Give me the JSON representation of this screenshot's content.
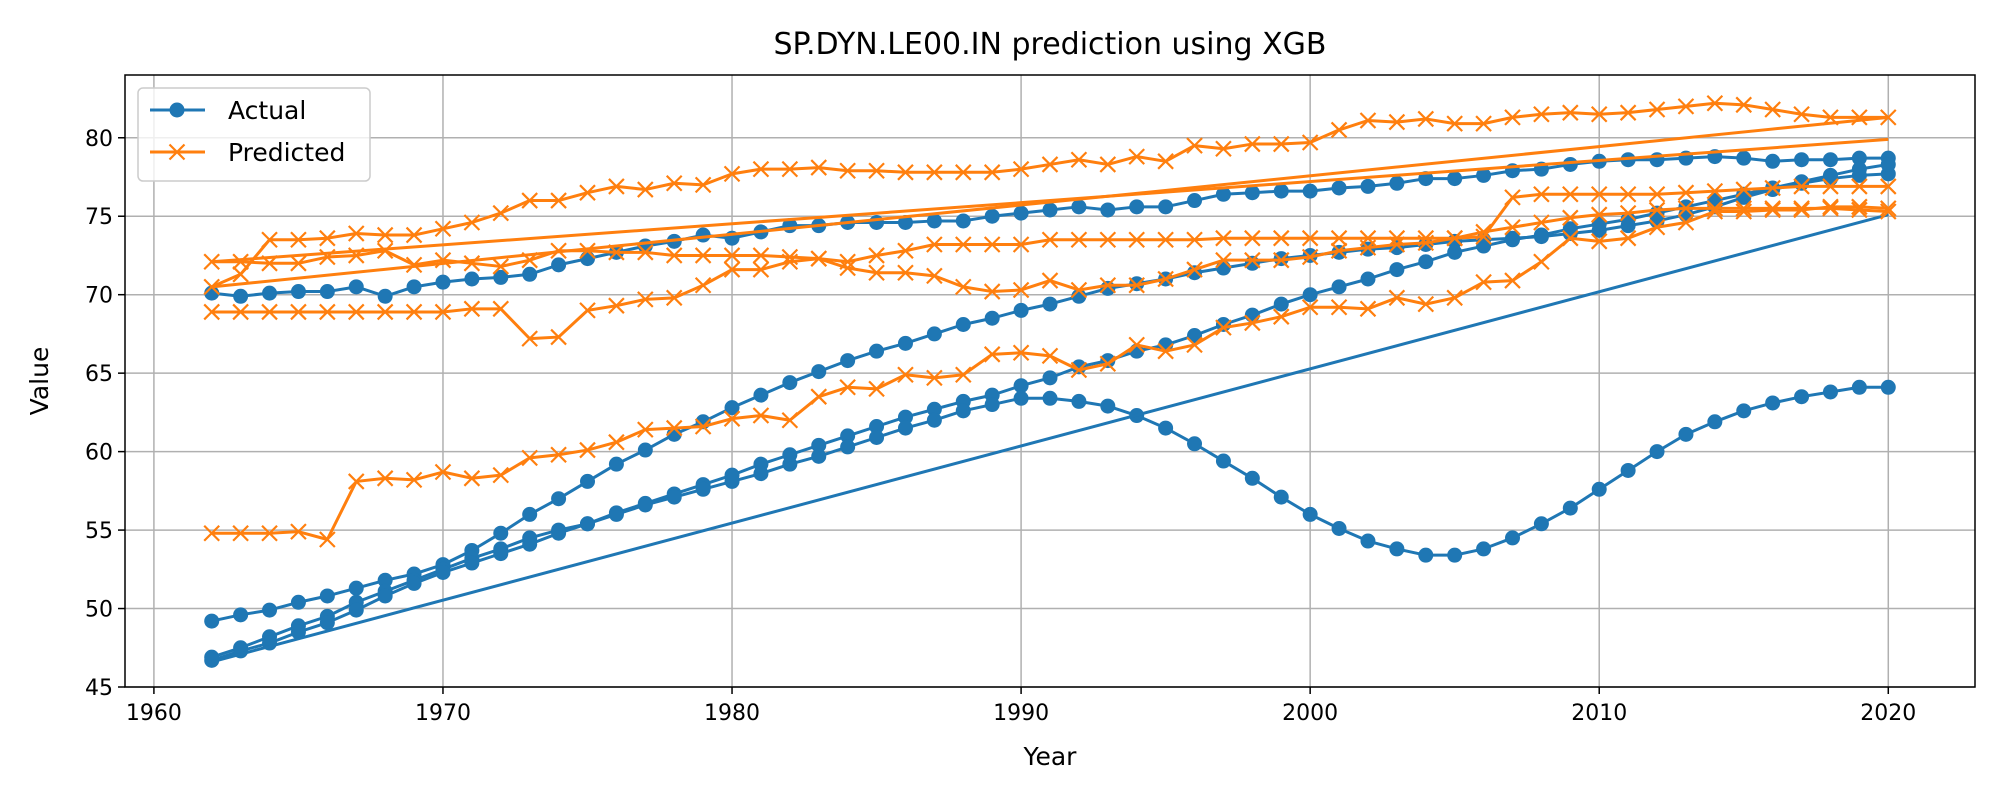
{
  "chart_data": {
    "type": "line",
    "title": "SP.DYN.LE00.IN prediction using XGB",
    "xlabel": "Year",
    "ylabel": "Value",
    "xlim": [
      1959,
      2023
    ],
    "ylim": [
      45,
      84
    ],
    "xticks": [
      1960,
      1970,
      1980,
      1990,
      2000,
      2010,
      2020
    ],
    "yticks": [
      45,
      50,
      55,
      60,
      65,
      70,
      75,
      80
    ],
    "grid": true,
    "legend_position": "top-left",
    "legend": [
      {
        "label": "Actual",
        "marker": "circle",
        "color": "#1f77b4"
      },
      {
        "label": "Predicted",
        "marker": "x",
        "color": "#ff7f0e"
      }
    ],
    "series": [
      {
        "legend": "Actual",
        "marker": "circle",
        "color": "#1f77b4",
        "x": [
          1962,
          1963,
          1964,
          1965,
          1966,
          1967,
          1968,
          1969,
          1970,
          1971,
          1972,
          1973,
          1974,
          1975,
          1976,
          1977,
          1978,
          1979,
          1980,
          1981,
          1982,
          1983,
          1984,
          1985,
          1986,
          1987,
          1988,
          1989,
          1990,
          1991,
          1992,
          1993,
          1994,
          1995,
          1996,
          1997,
          1998,
          1999,
          2000,
          2001,
          2002,
          2003,
          2004,
          2005,
          2006,
          2007,
          2008,
          2009,
          2010,
          2011,
          2012,
          2013,
          2014,
          2015,
          2016,
          2017,
          2018,
          2019,
          2020
        ],
        "y": [
          70.1,
          69.9,
          70.1,
          70.2,
          70.2,
          70.5,
          69.9,
          70.5,
          70.8,
          71.0,
          71.1,
          71.3,
          71.9,
          72.3,
          72.7,
          73.1,
          73.4,
          73.8,
          73.6,
          74.0,
          74.4,
          74.4,
          74.6,
          74.6,
          74.6,
          74.7,
          74.7,
          75.0,
          75.2,
          75.4,
          75.6,
          75.4,
          75.6,
          75.6,
          76.0,
          76.4,
          76.5,
          76.6,
          76.6,
          76.8,
          76.9,
          77.1,
          77.4,
          77.4,
          77.6,
          77.9,
          78.0,
          78.3,
          78.5,
          78.6,
          78.6,
          78.7,
          78.8,
          78.7,
          78.5,
          78.6,
          78.6,
          78.7,
          78.7
        ]
      },
      {
        "legend": "Actual",
        "marker": "circle",
        "color": "#1f77b4",
        "x": [
          1962,
          1963,
          1964,
          1965,
          1966,
          1967,
          1968,
          1969,
          1970,
          1971,
          1972,
          1973,
          1974,
          1975,
          1976,
          1977,
          1978,
          1979,
          1980,
          1981,
          1982,
          1983,
          1984,
          1985,
          1986,
          1987,
          1988,
          1989,
          1990,
          1991,
          1992,
          1993,
          1994,
          1995,
          1996,
          1997,
          1998,
          1999,
          2000,
          2001,
          2002,
          2003,
          2004,
          2005,
          2006,
          2007,
          2008,
          2009,
          2010,
          2011,
          2012,
          2013,
          2014,
          2015,
          2016,
          2017,
          2018,
          2019,
          2020
        ],
        "y": [
          49.2,
          49.6,
          49.9,
          50.4,
          50.8,
          51.3,
          51.8,
          52.2,
          52.8,
          53.7,
          54.8,
          56.0,
          57.0,
          58.1,
          59.2,
          60.1,
          61.1,
          61.9,
          62.8,
          63.6,
          64.4,
          65.1,
          65.8,
          66.4,
          66.9,
          67.5,
          68.1,
          68.5,
          69.0,
          69.4,
          69.9,
          70.4,
          70.7,
          71.0,
          71.4,
          71.7,
          72.0,
          72.3,
          72.5,
          72.7,
          72.9,
          73.0,
          73.2,
          73.4,
          73.5,
          73.6,
          73.7,
          73.9,
          74.1,
          74.4,
          74.7,
          75.1,
          75.6,
          76.2,
          76.7,
          77.1,
          77.4,
          77.6,
          77.7
        ]
      },
      {
        "legend": "Actual",
        "marker": "circle",
        "color": "#1f77b4",
        "x": [
          1962,
          1963,
          1964,
          1965,
          1966,
          1967,
          1968,
          1969,
          1970,
          1971,
          1972,
          1973,
          1974,
          1975,
          1976,
          1977,
          1978,
          1979,
          1980,
          1981,
          1982,
          1983,
          1984,
          1985,
          1986,
          1987,
          1988,
          1989,
          1990,
          1991,
          1992,
          1993,
          1994,
          1995,
          1996,
          1997,
          1998,
          1999,
          2000,
          2001,
          2002,
          2003,
          2004,
          2005,
          2006,
          2007,
          2008,
          2009,
          2010,
          2011,
          2012,
          2013,
          2014,
          2015,
          2016,
          2017,
          2018,
          2019,
          2020
        ],
        "y": [
          46.9,
          47.5,
          48.2,
          48.9,
          49.5,
          50.4,
          51.1,
          51.8,
          52.5,
          53.2,
          53.8,
          54.5,
          55.0,
          55.4,
          56.1,
          56.7,
          57.3,
          57.9,
          58.5,
          59.2,
          59.8,
          60.4,
          61.0,
          61.6,
          62.2,
          62.7,
          63.2,
          63.6,
          64.2,
          64.7,
          65.4,
          65.8,
          66.4,
          66.8,
          67.4,
          68.1,
          68.7,
          69.4,
          70.0,
          70.5,
          71.0,
          71.6,
          72.1,
          72.7,
          73.1,
          73.5,
          73.8,
          74.2,
          74.5,
          74.8,
          75.2,
          75.6,
          76.0,
          76.4,
          76.8,
          77.2,
          77.6,
          78.0,
          78.3
        ]
      },
      {
        "legend": "Actual",
        "marker": "circle",
        "color": "#1f77b4",
        "x": [
          1962,
          1963,
          1964,
          1965,
          1966,
          1967,
          1968,
          1969,
          1970,
          1971,
          1972,
          1973,
          1974,
          1975,
          1976,
          1977,
          1978,
          1979,
          1980,
          1981,
          1982,
          1983,
          1984,
          1985,
          1986,
          1987,
          1988,
          1989,
          1990,
          1991,
          1992,
          1993,
          1994,
          1995,
          1996,
          1997,
          1998,
          1999,
          2000,
          2001,
          2002,
          2003,
          2004,
          2005,
          2006,
          2007,
          2008,
          2009,
          2010,
          2011,
          2012,
          2013,
          2014,
          2015,
          2016,
          2017,
          2018,
          2019,
          2020
        ],
        "y": [
          46.7,
          47.3,
          47.8,
          48.5,
          49.1,
          49.9,
          50.8,
          51.6,
          52.3,
          52.9,
          53.5,
          54.1,
          54.8,
          55.4,
          56.0,
          56.6,
          57.1,
          57.6,
          58.1,
          58.6,
          59.2,
          59.7,
          60.3,
          60.9,
          61.5,
          62.0,
          62.6,
          63.0,
          63.4,
          63.4,
          63.2,
          62.9,
          62.3,
          61.5,
          60.5,
          59.4,
          58.3,
          57.1,
          56.0,
          55.1,
          54.3,
          53.8,
          53.4,
          53.4,
          53.8,
          54.5,
          55.4,
          56.4,
          57.6,
          58.8,
          60.0,
          61.1,
          61.9,
          62.6,
          63.1,
          63.5,
          63.8,
          64.1,
          64.1
        ]
      },
      {
        "legend": "Actual",
        "marker": "none",
        "color": "#1f77b4",
        "x": [
          1962,
          2020
        ],
        "y": [
          46.6,
          75.1
        ]
      },
      {
        "legend": "Predicted",
        "marker": "x",
        "color": "#ff7f0e",
        "x": [
          1962,
          1963,
          1964,
          1965,
          1966,
          1967,
          1968,
          1969,
          1970,
          1971,
          1972,
          1973,
          1974,
          1975,
          1976,
          1977,
          1978,
          1979,
          1980,
          1981,
          1982,
          1983,
          1984,
          1985,
          1986,
          1987,
          1988,
          1989,
          1990,
          1991,
          1992,
          1993,
          1994,
          1995,
          1996,
          1997,
          1998,
          1999,
          2000,
          2001,
          2002,
          2003,
          2004,
          2005,
          2006,
          2007,
          2008,
          2009,
          2010,
          2011,
          2012,
          2013,
          2014,
          2015,
          2016,
          2017,
          2018,
          2019,
          2020
        ],
        "y": [
          72.1,
          72.1,
          72.0,
          72.0,
          72.4,
          72.5,
          72.8,
          71.9,
          72.2,
          72.0,
          71.8,
          72.2,
          72.8,
          72.8,
          72.7,
          72.7,
          72.5,
          72.5,
          72.5,
          72.5,
          72.4,
          72.3,
          71.7,
          71.4,
          71.4,
          71.2,
          70.5,
          70.2,
          70.3,
          70.9,
          70.3,
          70.6,
          70.6,
          71.0,
          71.6,
          72.2,
          72.2,
          72.2,
          72.4,
          72.8,
          73.0,
          73.2,
          73.3,
          73.6,
          74.0,
          74.3,
          74.6,
          74.9,
          75.1,
          75.2,
          75.4,
          75.5,
          75.5,
          75.5,
          75.5,
          75.5,
          75.5,
          75.4,
          75.3
        ]
      },
      {
        "legend": "Predicted",
        "marker": "x",
        "color": "#ff7f0e",
        "x": [
          1962,
          1963,
          1964,
          1965,
          1966,
          1967,
          1968,
          1969,
          1970,
          1971,
          1972,
          1973,
          1974,
          1975,
          1976,
          1977,
          1978,
          1979,
          1980,
          1981,
          1982,
          1983,
          1984,
          1985,
          1986,
          1987,
          1988,
          1989,
          1990,
          1991,
          1992,
          1993,
          1994,
          1995,
          1996,
          1997,
          1998,
          1999,
          2000,
          2001,
          2002,
          2003,
          2004,
          2005,
          2006,
          2007,
          2008,
          2009,
          2010,
          2011,
          2012,
          2013,
          2014,
          2015,
          2016,
          2017,
          2018,
          2019,
          2020
        ],
        "y": [
          70.5,
          71.3,
          73.5,
          73.5,
          73.6,
          73.9,
          73.8,
          73.8,
          74.2,
          74.6,
          75.2,
          76.0,
          76.0,
          76.5,
          76.9,
          76.7,
          77.1,
          77.0,
          77.7,
          78.0,
          78.0,
          78.1,
          77.9,
          77.9,
          77.8,
          77.8,
          77.8,
          77.8,
          78.0,
          78.3,
          78.6,
          78.3,
          78.8,
          78.5,
          79.5,
          79.3,
          79.6,
          79.6,
          79.7,
          80.5,
          81.1,
          81.0,
          81.2,
          80.9,
          80.9,
          81.3,
          81.5,
          81.6,
          81.5,
          81.6,
          81.8,
          82.0,
          82.2,
          82.1,
          81.8,
          81.5,
          81.3,
          81.3,
          81.3
        ]
      },
      {
        "legend": "Predicted",
        "marker": "x",
        "color": "#ff7f0e",
        "x": [
          1962,
          1963,
          1964,
          1965,
          1966,
          1967,
          1968,
          1969,
          1970,
          1971,
          1972,
          1973,
          1974,
          1975,
          1976,
          1977,
          1978,
          1979,
          1980,
          1981,
          1982,
          1983,
          1984,
          1985,
          1986,
          1987,
          1988,
          1989,
          1990,
          1991,
          1992,
          1993,
          1994,
          1995,
          1996,
          1997,
          1998,
          1999,
          2000,
          2001,
          2002,
          2003,
          2004,
          2005,
          2006,
          2007,
          2008,
          2009,
          2010,
          2011,
          2012,
          2013,
          2014,
          2015,
          2016,
          2017,
          2018,
          2019,
          2020
        ],
        "y": [
          68.9,
          68.9,
          68.9,
          68.9,
          68.9,
          68.9,
          68.9,
          68.9,
          68.9,
          69.1,
          69.1,
          67.2,
          67.3,
          69.0,
          69.3,
          69.7,
          69.8,
          70.6,
          71.6,
          71.6,
          72.1,
          72.3,
          72.1,
          72.5,
          72.8,
          73.2,
          73.2,
          73.2,
          73.2,
          73.5,
          73.5,
          73.5,
          73.5,
          73.5,
          73.5,
          73.6,
          73.6,
          73.6,
          73.6,
          73.6,
          73.6,
          73.6,
          73.6,
          73.6,
          73.7,
          76.2,
          76.4,
          76.4,
          76.4,
          76.4,
          76.4,
          76.5,
          76.6,
          76.7,
          76.8,
          76.9,
          76.9,
          76.9,
          76.9
        ]
      },
      {
        "legend": "Predicted",
        "marker": "x",
        "color": "#ff7f0e",
        "x": [
          1962,
          1963,
          1964,
          1965,
          1966,
          1967,
          1968,
          1969,
          1970,
          1971,
          1972,
          1973,
          1974,
          1975,
          1976,
          1977,
          1978,
          1979,
          1980,
          1981,
          1982,
          1983,
          1984,
          1985,
          1986,
          1987,
          1988,
          1989,
          1990,
          1991,
          1992,
          1993,
          1994,
          1995,
          1996,
          1997,
          1998,
          1999,
          2000,
          2001,
          2002,
          2003,
          2004,
          2005,
          2006,
          2007,
          2008,
          2009,
          2010,
          2011,
          2012,
          2013,
          2014,
          2015,
          2016,
          2017,
          2018,
          2019,
          2020
        ],
        "y": [
          54.8,
          54.8,
          54.8,
          54.9,
          54.4,
          58.1,
          58.3,
          58.2,
          58.7,
          58.3,
          58.5,
          59.6,
          59.8,
          60.1,
          60.6,
          61.4,
          61.5,
          61.6,
          62.1,
          62.3,
          62.0,
          63.5,
          64.1,
          64.0,
          64.9,
          64.7,
          64.9,
          66.2,
          66.3,
          66.1,
          65.2,
          65.6,
          66.8,
          66.4,
          66.8,
          67.9,
          68.2,
          68.6,
          69.2,
          69.2,
          69.1,
          69.8,
          69.4,
          69.8,
          70.8,
          70.9,
          72.1,
          73.6,
          73.4,
          73.6,
          74.3,
          74.6,
          75.3,
          75.3,
          75.4,
          75.4,
          75.6,
          75.6,
          75.5
        ]
      },
      {
        "legend": "Predicted",
        "marker": "none",
        "color": "#ff7f0e",
        "x": [
          1962,
          2020
        ],
        "y": [
          70.5,
          81.3
        ]
      },
      {
        "legend": "Predicted",
        "marker": "none",
        "color": "#ff7f0e",
        "x": [
          1962,
          2020
        ],
        "y": [
          72.1,
          79.9
        ]
      }
    ]
  }
}
